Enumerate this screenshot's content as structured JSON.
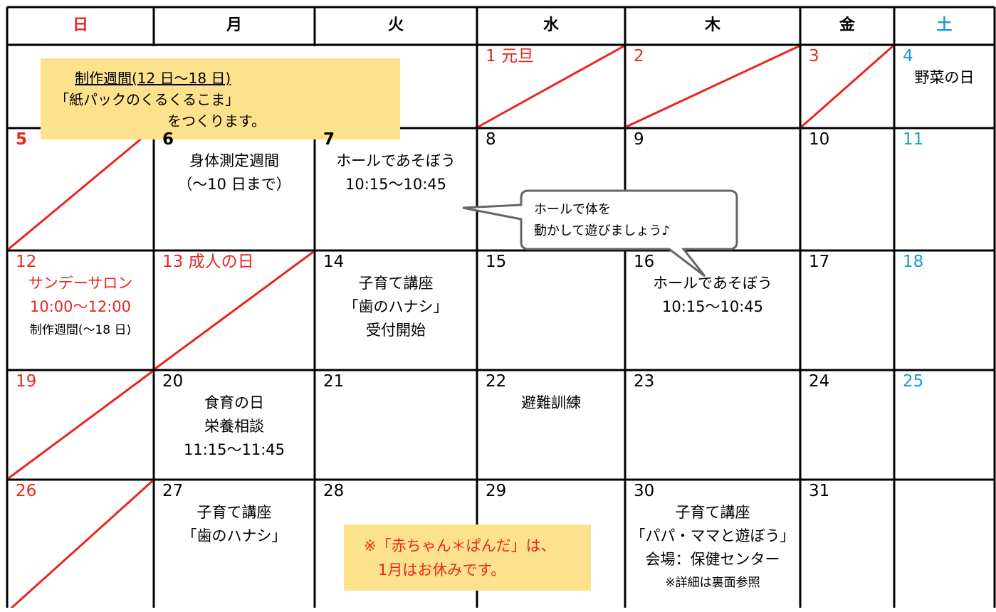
{
  "header": {
    "days": [
      {
        "text": "日",
        "color": "#e8261f"
      },
      {
        "text": "月"
      },
      {
        "text": "火"
      },
      {
        "text": "水"
      },
      {
        "text": "木"
      },
      {
        "text": "金"
      },
      {
        "text": "土",
        "color": "#1b9ad6"
      }
    ]
  },
  "note": {
    "lines": [
      "制作週間(12 日～18 日)",
      "「紙パックのくるくるこま」",
      "をつくります。"
    ]
  },
  "bubble": {
    "lines": [
      "ホールで体を",
      "動かして遊びましょう♪"
    ]
  },
  "notice": {
    "lines": [
      "※「赤ちゃん＊ぱんだ」は、",
      "1月はお休みです。"
    ]
  },
  "weeks": [
    [
      null,
      null,
      null,
      {
        "day": "1 元旦",
        "color": "#e8261f",
        "crossed": true
      },
      {
        "day": "2",
        "color": "#e8261f",
        "crossed": true
      },
      {
        "day": "3",
        "color": "#e8261f",
        "crossed": true
      },
      {
        "day": "4",
        "color": "#1b9ad6",
        "lines": [
          "野菜の日"
        ]
      }
    ],
    [
      {
        "day": "5",
        "color": "#e8261f",
        "bold": true,
        "crossed": true
      },
      {
        "day": "6",
        "bold": true,
        "lines": [
          "身体測定週間",
          "（～10 日まで）"
        ]
      },
      {
        "day": "7",
        "bold": true,
        "lines": [
          "ホールであそぼう",
          "10:15～10:45"
        ]
      },
      {
        "day": "8"
      },
      {
        "day": "9"
      },
      {
        "day": "10"
      },
      {
        "day": "11",
        "color": "#1b9ad6"
      }
    ],
    [
      {
        "day": "12",
        "color": "#e8261f",
        "lines": [
          {
            "text": "サンデーサロン",
            "color": "#e8261f"
          },
          {
            "text": "10:00～12:00",
            "color": "#e8261f"
          },
          {
            "text": "制作週間(～18 日)",
            "small": true
          }
        ]
      },
      {
        "day": "13 成人の日",
        "color": "#e8261f",
        "crossed": true
      },
      {
        "day": "14",
        "lines": [
          "子育て講座",
          "「歯のハナシ」",
          "受付開始"
        ]
      },
      {
        "day": "15"
      },
      {
        "day": "16",
        "lines": [
          "ホールであそぼう",
          "10:15～10:45"
        ]
      },
      {
        "day": "17"
      },
      {
        "day": "18",
        "color": "#1b9ad6"
      }
    ],
    [
      {
        "day": "19",
        "color": "#e8261f",
        "crossed": true
      },
      {
        "day": "20",
        "lines": [
          "食育の日",
          "栄養相談",
          "11:15～11:45"
        ]
      },
      {
        "day": "21"
      },
      {
        "day": "22",
        "lines": [
          "避難訓練"
        ]
      },
      {
        "day": "23"
      },
      {
        "day": "24"
      },
      {
        "day": "25",
        "color": "#1b9ad6"
      }
    ],
    [
      {
        "day": "26",
        "color": "#e8261f",
        "crossed": true
      },
      {
        "day": "27",
        "lines": [
          "子育て講座",
          "「歯のハナシ」"
        ]
      },
      {
        "day": "28"
      },
      {
        "day": "29"
      },
      {
        "day": "30",
        "lines": [
          "子育て講座",
          "「パパ・ママと遊ぼう」",
          "会場：保健センター",
          {
            "text": "※詳細は裏面参照",
            "small": true
          }
        ]
      },
      {
        "day": "31"
      },
      {}
    ]
  ]
}
